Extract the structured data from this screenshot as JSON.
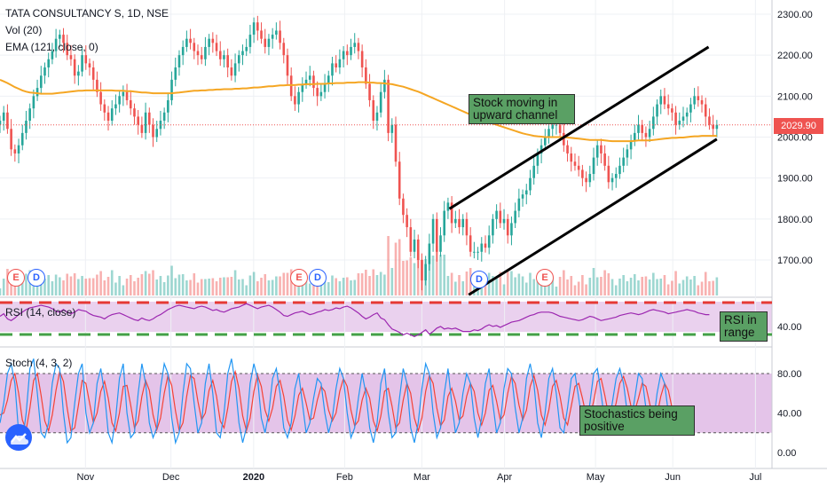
{
  "header": {
    "symbol_line": "TATA CONSULTANCY S, 1D, NSE",
    "volume_line": "Vol (20)",
    "ema_line": "EMA (121, close, 0)"
  },
  "rsi_title": "RSI (14, close)",
  "stoch_title": "Stoch (4, 3, 2)",
  "annotations": {
    "channel_note": "Stock moving in upward channel",
    "rsi_note": "RSI in range",
    "stoch_note": "Stochastics being positive"
  },
  "last_price": "2029.90",
  "colors": {
    "up": "#26a69a",
    "down": "#ef5350",
    "ema": "#f5a623",
    "rsi_line": "#9c27b0",
    "stoch_k": "#2196f3",
    "stoch_d": "#f44336",
    "rsi_upper_band": "#e53935",
    "rsi_lower_band": "#43a047",
    "osc_fill": "#e1bee7"
  },
  "icons": {
    "logo": "tradingview-cloud-icon"
  },
  "events": [
    {
      "kind": "earnings",
      "letter": "E",
      "date": "2019-10-10"
    },
    {
      "kind": "dividend",
      "letter": "D",
      "date": "2019-10-17"
    },
    {
      "kind": "earnings",
      "letter": "E",
      "date": "2020-01-17"
    },
    {
      "kind": "dividend",
      "letter": "D",
      "date": "2020-01-24"
    },
    {
      "kind": "dividend",
      "letter": "D",
      "date": "2020-03-16"
    },
    {
      "kind": "earnings",
      "letter": "E",
      "date": "2020-04-16"
    }
  ],
  "chart_data": {
    "type": "candlestick",
    "price_axis": {
      "ticks": [
        "2300.00",
        "2200.00",
        "2100.00",
        "2000.00",
        "1900.00",
        "1800.00",
        "1700.00"
      ],
      "range": [
        1630,
        2330
      ]
    },
    "rsi_axis": {
      "ticks": [
        "40.00"
      ]
    },
    "stoch_axis": {
      "ticks": [
        "80.00",
        "40.00",
        "0.00"
      ],
      "range": [
        -10,
        105
      ]
    },
    "x_ticks": [
      "Nov",
      "Dec",
      "2020",
      "Feb",
      "Mar",
      "Apr",
      "May",
      "Jun",
      "Jul"
    ],
    "x_tick_dates": [
      "2019-11-01",
      "2019-12-02",
      "2020-01-01",
      "2020-02-03",
      "2020-03-02",
      "2020-04-01",
      "2020-05-04",
      "2020-06-01",
      "2020-07-01"
    ],
    "daily": {
      "start_date": "2019-10-01",
      "end_date": "2020-06-17",
      "close": [
        2040,
        2060,
        2020,
        1970,
        1960,
        1980,
        2010,
        2040,
        2070,
        2100,
        2120,
        2150,
        2170,
        2190,
        2210,
        2240,
        2250,
        2230,
        2200,
        2190,
        2150,
        2160,
        2200,
        2180,
        2170,
        2140,
        2110,
        2080,
        2060,
        2040,
        2070,
        2080,
        2100,
        2110,
        2090,
        2070,
        2050,
        2030,
        2010,
        2060,
        2030,
        2000,
        2020,
        2040,
        2060,
        2090,
        2140,
        2170,
        2200,
        2220,
        2240,
        2230,
        2210,
        2200,
        2190,
        2220,
        2240,
        2230,
        2210,
        2190,
        2200,
        2170,
        2150,
        2180,
        2200,
        2210,
        2220,
        2250,
        2280,
        2260,
        2240,
        2220,
        2240,
        2250,
        2260,
        2230,
        2200,
        2150,
        2100,
        2080,
        2110,
        2130,
        2140,
        2150,
        2120,
        2100,
        2110,
        2130,
        2150,
        2180,
        2170,
        2190,
        2210,
        2200,
        2220,
        2230,
        2210,
        2170,
        2130,
        2090,
        2040,
        2060,
        2110,
        2140,
        2010,
        2030,
        1940,
        1850,
        1810,
        1780,
        1720,
        1750,
        1700,
        1650,
        1690,
        1740,
        1800,
        1720,
        1760,
        1820,
        1840,
        1790,
        1800,
        1780,
        1800,
        1760,
        1720,
        1720,
        1720,
        1740,
        1730,
        1760,
        1800,
        1820,
        1790,
        1800,
        1760,
        1790,
        1820,
        1850,
        1860,
        1870,
        1900,
        1930,
        1960,
        1980,
        2000,
        2020,
        2030,
        2030,
        2010,
        1980,
        1960,
        1940,
        1930,
        1920,
        1900,
        1890,
        1910,
        1950,
        1980,
        1960,
        1930,
        1890,
        1900,
        1910,
        1930,
        1950,
        1970,
        1990,
        2010,
        2030,
        2010,
        2000,
        2020,
        2050,
        2080,
        2100,
        2080,
        2070,
        2060,
        2030,
        2040,
        2050,
        2060,
        2080,
        2100,
        2090,
        2080,
        2050,
        2030,
        2020,
        2029.9
      ],
      "ema121": [
        2140,
        2136,
        2132,
        2127,
        2122,
        2118,
        2114,
        2111,
        2109,
        2108,
        2107,
        2106,
        2106,
        2106,
        2106,
        2107,
        2108,
        2109,
        2110,
        2111,
        2112,
        2113,
        2113,
        2114,
        2114,
        2114,
        2114,
        2114,
        2114,
        2114,
        2114,
        2113,
        2113,
        2113,
        2112,
        2112,
        2111,
        2110,
        2109,
        2109,
        2108,
        2107,
        2107,
        2107,
        2107,
        2107,
        2107,
        2108,
        2109,
        2110,
        2111,
        2112,
        2113,
        2113,
        2114,
        2114,
        2115,
        2115,
        2116,
        2116,
        2117,
        2117,
        2117,
        2118,
        2118,
        2119,
        2119,
        2120,
        2121,
        2121,
        2122,
        2123,
        2124,
        2124,
        2125,
        2126,
        2126,
        2127,
        2127,
        2127,
        2128,
        2128,
        2129,
        2129,
        2129,
        2130,
        2130,
        2130,
        2131,
        2131,
        2132,
        2132,
        2132,
        2133,
        2133,
        2133,
        2134,
        2134,
        2134,
        2133,
        2133,
        2132,
        2132,
        2131,
        2130,
        2129,
        2127,
        2125,
        2123,
        2120,
        2117,
        2114,
        2111,
        2107,
        2103,
        2099,
        2095,
        2091,
        2087,
        2083,
        2079,
        2075,
        2071,
        2067,
        2063,
        2059,
        2055,
        2051,
        2047,
        2043,
        2039,
        2036,
        2033,
        2030,
        2027,
        2024,
        2021,
        2018,
        2015,
        2012,
        2009,
        2007,
        2005,
        2003,
        2002,
        2001,
        2000,
        2000,
        2000,
        2000,
        2000,
        2000,
        1999,
        1998,
        1997,
        1996,
        1995,
        1994,
        1993,
        1993,
        1993,
        1993,
        1992,
        1991,
        1990,
        1990,
        1990,
        1990,
        1990,
        1990,
        1991,
        1992,
        1992,
        1992,
        1992,
        1993,
        1994,
        1995,
        1996,
        1997,
        1998,
        1998,
        1999,
        1999,
        2000,
        2001,
        2002,
        2002,
        2003,
        2003,
        2003,
        2003,
        2003
      ],
      "rsi": [
        50,
        53,
        47,
        45,
        48,
        52,
        55,
        58,
        60,
        61,
        62,
        63,
        62,
        61,
        59,
        56,
        55,
        58,
        55,
        53,
        55,
        58,
        57,
        56,
        53,
        51,
        50,
        49,
        47,
        50,
        52,
        53,
        54,
        52,
        50,
        48,
        46,
        45,
        48,
        46,
        45,
        47,
        50,
        52,
        55,
        58,
        60,
        62,
        63,
        62,
        61,
        60,
        59,
        61,
        62,
        61,
        59,
        57,
        58,
        56,
        55,
        57,
        59,
        60,
        61,
        63,
        65,
        63,
        61,
        59,
        61,
        62,
        63,
        61,
        58,
        55,
        51,
        50,
        52,
        54,
        55,
        56,
        54,
        52,
        53,
        55,
        56,
        58,
        57,
        58,
        60,
        59,
        61,
        62,
        60,
        57,
        54,
        50,
        47,
        49,
        52,
        54,
        48,
        46,
        40,
        35,
        33,
        31,
        28,
        30,
        28,
        26,
        28,
        31,
        34,
        29,
        32,
        36,
        38,
        35,
        36,
        35,
        36,
        34,
        32,
        32,
        32,
        34,
        33,
        35,
        38,
        40,
        38,
        39,
        37,
        39,
        41,
        43,
        44,
        45,
        47,
        49,
        51,
        52,
        54,
        55,
        55,
        55,
        54,
        52,
        50,
        49,
        48,
        47,
        46,
        45,
        46,
        48,
        50,
        49,
        47,
        45,
        46,
        47,
        48,
        49,
        51,
        52,
        53,
        54,
        53,
        52,
        53,
        55,
        57,
        58,
        57,
        56,
        55,
        53,
        54,
        55,
        56,
        57,
        58,
        57,
        56,
        54,
        53,
        52,
        52
      ],
      "stoch_k": [
        30,
        50,
        80,
        90,
        70,
        20,
        10,
        40,
        85,
        95,
        60,
        20,
        15,
        30,
        70,
        90,
        85,
        40,
        10,
        15,
        50,
        80,
        90,
        40,
        20,
        30,
        70,
        85,
        60,
        20,
        10,
        35,
        75,
        90,
        40,
        15,
        20,
        60,
        90,
        70,
        30,
        15,
        25,
        65,
        90,
        80,
        35,
        10,
        20,
        60,
        90,
        85,
        50,
        20,
        30,
        70,
        90,
        60,
        20,
        15,
        40,
        80,
        95,
        70,
        30,
        10,
        25,
        70,
        90,
        75,
        35,
        20,
        40,
        75,
        85,
        60,
        25,
        15,
        30,
        65,
        80,
        50,
        20,
        30,
        55,
        75,
        70,
        40,
        20,
        35,
        65,
        85,
        75,
        40,
        15,
        25,
        55,
        80,
        60,
        25,
        10,
        30,
        70,
        85,
        40,
        15,
        20,
        55,
        85,
        70,
        25,
        10,
        30,
        65,
        90,
        80,
        40,
        15,
        25,
        60,
        85,
        50,
        20,
        30,
        60,
        80,
        70,
        35,
        15,
        35,
        70,
        85,
        50,
        20,
        30,
        65,
        85,
        80,
        45,
        20,
        35,
        75,
        90,
        70,
        30,
        15,
        40,
        75,
        85,
        60,
        25,
        20,
        45,
        75,
        80,
        55,
        30,
        25,
        50,
        80,
        85,
        60,
        30,
        25,
        50,
        75,
        85,
        70,
        40,
        30,
        55,
        80,
        75,
        45,
        25,
        30,
        60,
        80,
        70,
        40,
        25,
        35,
        45,
        30,
        20,
        25
      ],
      "stoch_d": [
        38,
        40,
        53,
        73,
        80,
        60,
        33,
        23,
        45,
        73,
        80,
        58,
        32,
        22,
        38,
        63,
        82,
        72,
        45,
        22,
        25,
        48,
        73,
        70,
        50,
        30,
        40,
        62,
        72,
        55,
        30,
        22,
        40,
        67,
        68,
        48,
        25,
        32,
        57,
        73,
        63,
        38,
        23,
        35,
        60,
        78,
        68,
        42,
        22,
        30,
        57,
        78,
        75,
        52,
        33,
        40,
        63,
        73,
        57,
        32,
        25,
        45,
        72,
        82,
        65,
        37,
        22,
        35,
        62,
        78,
        67,
        43,
        32,
        45,
        67,
        73,
        57,
        33,
        23,
        37,
        58,
        65,
        50,
        33,
        35,
        53,
        67,
        62,
        43,
        32,
        40,
        62,
        75,
        67,
        43,
        27,
        32,
        53,
        65,
        55,
        32,
        22,
        37,
        62,
        65,
        47,
        25,
        30,
        53,
        70,
        60,
        35,
        22,
        35,
        62,
        78,
        70,
        45,
        27,
        33,
        57,
        65,
        52,
        33,
        37,
        57,
        70,
        62,
        40,
        28,
        40,
        63,
        68,
        52,
        33,
        38,
        60,
        77,
        70,
        48,
        33,
        43,
        67,
        78,
        63,
        38,
        28,
        43,
        67,
        73,
        57,
        35,
        28,
        47,
        67,
        70,
        55,
        37,
        35,
        52,
        72,
        75,
        58,
        38,
        35,
        50,
        70,
        77,
        65,
        47,
        42,
        55,
        70,
        67,
        50,
        33,
        38,
        57,
        70,
        63,
        45,
        33,
        35,
        37,
        32,
        25
      ]
    }
  }
}
